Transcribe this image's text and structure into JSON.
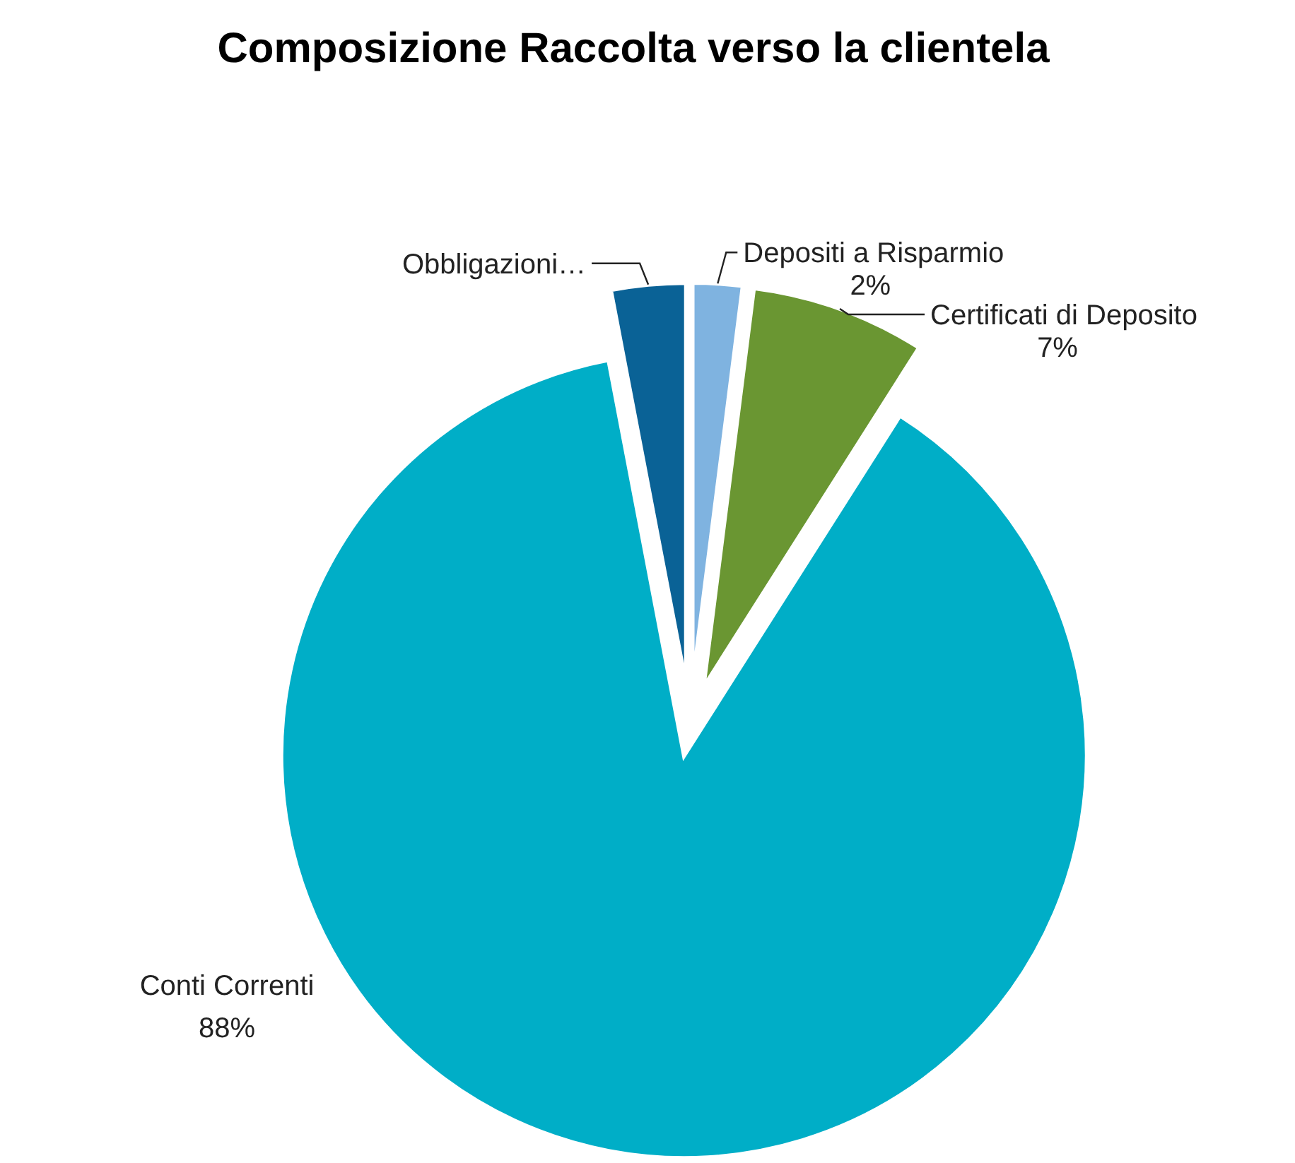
{
  "chart_data": {
    "type": "pie",
    "title": "Composizione Raccolta verso la clientela",
    "categories": [
      "Depositi a Risparmio",
      "Certificati di Deposito",
      "Conti Correnti",
      "Obbligazioni…"
    ],
    "values": [
      2,
      7,
      88,
      3
    ],
    "value_labels": [
      "2%",
      "7%",
      "88%",
      null
    ],
    "colors": [
      "#7fb3e0",
      "#6a9632",
      "#00aec7",
      "#0a6296"
    ]
  }
}
